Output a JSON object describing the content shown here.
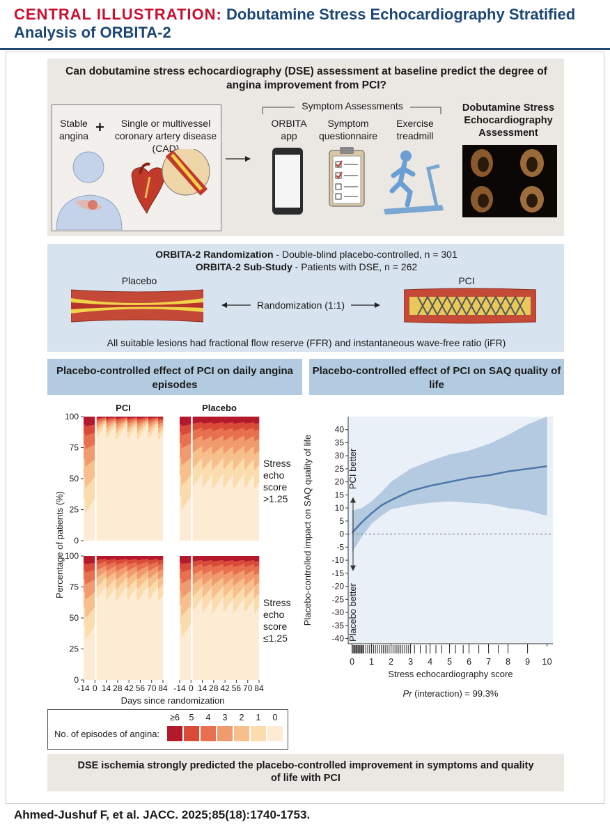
{
  "header": {
    "title_keyword": "CENTRAL ILLUSTRATION:",
    "title_rest": "Dobutamine Stress Echocardiography Stratified Analysis of ORBITA-2"
  },
  "top_panel": {
    "question": "Can dobutamine stress echocardiography (DSE) assessment at baseline predict the degree of angina improvement from PCI?",
    "stable_angina": "Stable angina",
    "plus": "+",
    "cad_label": "Single or multivessel coronary artery disease (CAD)",
    "symptom_assessments": "Symptom Assessments",
    "orbita_app": "ORBITA app",
    "questionnaire": "Symptom questionnaire",
    "treadmill": "Exercise treadmill",
    "dse_title": "Dobutamine Stress Echocardiography Assessment"
  },
  "randomization": {
    "line1_bold": "ORBITA-2 Randomization",
    "line1_rest": " - Double-blind placebo-controlled, n = 301",
    "line2_bold": "ORBITA-2 Sub-Study",
    "line2_rest": " - Patients with DSE, n = 262",
    "placebo": "Placebo",
    "pci": "PCI",
    "randomization_label": "Randomization (1:1)",
    "footnote": "All suitable lesions had fractional flow reserve (FFR) and instantaneous wave-free ratio (iFR)"
  },
  "left_heading": "Placebo-controlled effect of PCI on daily angina episodes",
  "right_heading": "Placebo-controlled effect of PCI on SAQ quality of life",
  "conclusion": "DSE ischemia strongly predicted the placebo-controlled improvement in symptoms and quality of life with PCI",
  "citation": "Ahmed-Jushuf F, et al. JACC. 2025;85(18):1740-1753.",
  "colors": {
    "navy": "#1d4775",
    "red": "#c8102e",
    "episode_scale": [
      "#b3182b",
      "#d94a38",
      "#e8704f",
      "#f19a6e",
      "#f6bf8c",
      "#fadcae",
      "#fdebd3"
    ],
    "curve": "#4a76a6",
    "band": "#aec5de"
  },
  "chart_data": [
    {
      "type": "heatmap",
      "title": "Placebo-controlled effect of PCI on daily angina episodes",
      "xlabel": "Days since randomization",
      "ylabel": "Percentage of patients (%)",
      "x_ticks": [
        "-14",
        "0",
        "14",
        "28",
        "42",
        "56",
        "70",
        "84"
      ],
      "y_ticks": [
        "0",
        "25",
        "50",
        "75",
        "100"
      ],
      "ylim": [
        0,
        100
      ],
      "columns": [
        "PCI",
        "Placebo"
      ],
      "rows": [
        "Stress echo score >1.25",
        "Stress echo score ≤1.25"
      ],
      "legend_title": "No. of episodes of angina:",
      "legend_labels": [
        "≥6",
        "5",
        "4",
        "3",
        "2",
        "1",
        "0"
      ],
      "approx_percent_with_episodes": {
        "pci_high_score": {
          "baseline": 72,
          "followup": 12
        },
        "placebo_high_score": {
          "baseline": 70,
          "followup": 52
        },
        "pci_low_score": {
          "baseline": 62,
          "followup": 30
        },
        "placebo_low_score": {
          "baseline": 60,
          "followup": 40
        }
      }
    },
    {
      "type": "line",
      "title": "Placebo-controlled effect of PCI on SAQ quality of life",
      "xlabel": "Stress echocardiography score",
      "ylabel": "Placebo-controlled impact on SAQ quality of life",
      "xlim": [
        -0.2,
        10.3
      ],
      "ylim": [
        -42,
        45
      ],
      "x_ticks": [
        0,
        1,
        2,
        3,
        4,
        5,
        6,
        7,
        8,
        9,
        10
      ],
      "y_ticks": [
        -40,
        -35,
        -30,
        -25,
        -20,
        -15,
        -10,
        -5,
        0,
        5,
        10,
        15,
        20,
        25,
        30,
        35,
        40
      ],
      "series": [
        {
          "name": "estimate",
          "x": [
            0,
            0.5,
            1,
            1.5,
            2,
            3,
            4,
            5,
            6,
            7,
            8,
            9,
            10
          ],
          "y": [
            0.5,
            4.5,
            8,
            11,
            13,
            16.5,
            18.5,
            20,
            21.5,
            22.5,
            24,
            25,
            26
          ]
        },
        {
          "name": "lower",
          "x": [
            0,
            0.5,
            1,
            1.5,
            2,
            3,
            4,
            5,
            6,
            7,
            8,
            9,
            10
          ],
          "y": [
            -7,
            -1,
            4,
            7,
            9.5,
            11,
            12,
            12.5,
            12,
            11.5,
            10,
            9,
            7
          ]
        },
        {
          "name": "upper",
          "x": [
            0,
            0.5,
            1,
            1.5,
            2,
            3,
            4,
            5,
            6,
            7,
            8,
            9,
            10
          ],
          "y": [
            9,
            10,
            12.5,
            16,
            20,
            25,
            28,
            30.5,
            32,
            34.5,
            38,
            42,
            45
          ]
        }
      ],
      "annotations": [
        "PCI better",
        "Placebo better"
      ],
      "interaction_prefix": "Pr",
      "interaction_rest": " (interaction) = 99.3%",
      "rug_x": [
        0,
        0.05,
        0.1,
        0.15,
        0.2,
        0.25,
        0.3,
        0.35,
        0.4,
        0.45,
        0.5,
        0.55,
        0.6,
        0.7,
        0.8,
        0.9,
        1.0,
        1.1,
        1.2,
        1.3,
        1.4,
        1.5,
        1.6,
        1.7,
        1.8,
        1.9,
        2.0,
        2.1,
        2.2,
        2.3,
        2.4,
        2.5,
        2.6,
        2.7,
        2.8,
        2.9,
        3.0,
        3.2,
        3.5,
        3.8,
        4.0,
        4.3,
        4.6,
        5.0,
        5.3,
        5.7,
        6.0,
        6.5,
        7.0,
        7.5,
        8.0,
        9.0
      ]
    }
  ]
}
